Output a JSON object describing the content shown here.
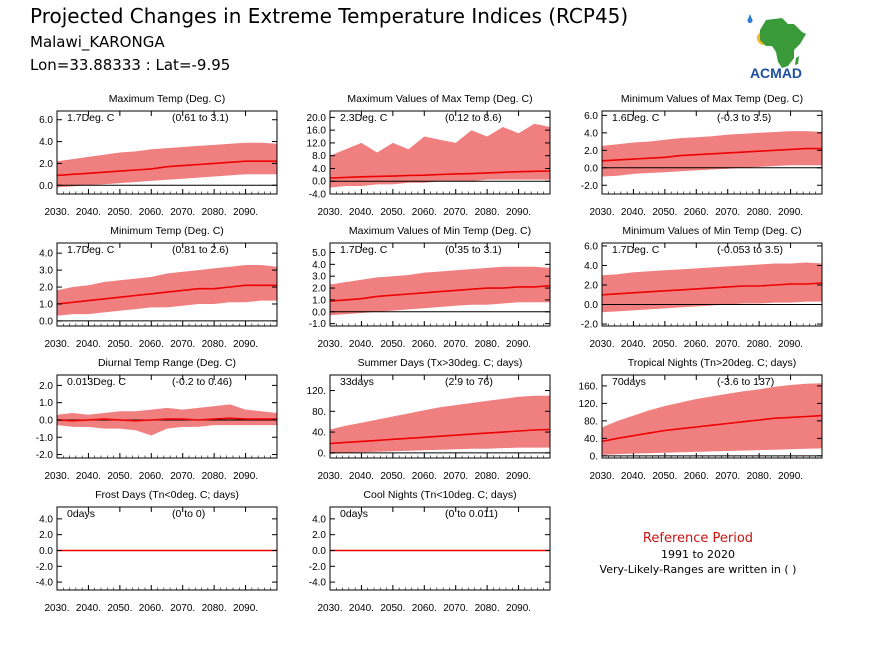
{
  "header": {
    "title": "Projected Changes in Extreme Temperature Indices (RCP45)",
    "location": "Malawi_KARONGA",
    "coords": "Lon=33.88333 : Lat=-9.95"
  },
  "logo": {
    "text": "ACMAD",
    "icon": "africa-continent-logo"
  },
  "reference": {
    "title": "Reference Period",
    "period": "1991 to 2020",
    "note": "Very-Likely-Ranges are written in ( )"
  },
  "colors": {
    "band": "#f08080",
    "line": "#ee0000",
    "zero": "#000000",
    "ref_title": "#cc1111"
  },
  "chart_data": [
    {
      "type": "area",
      "title": "Maximum Temp (Deg. C)",
      "summary": "1.7Deg. C",
      "range": "(0.61 to 3.1)",
      "x": [
        2030,
        2035,
        2040,
        2045,
        2050,
        2055,
        2060,
        2065,
        2070,
        2075,
        2080,
        2085,
        2090,
        2095,
        2100
      ],
      "xticks": [
        "2030.",
        "2040.",
        "2050.",
        "2060.",
        "2070.",
        "2080.",
        "2090."
      ],
      "ylim": [
        -0.8,
        6.8
      ],
      "yticks": [
        "0.0",
        "2.0",
        "4.0",
        "6.0"
      ],
      "ytick_values": [
        0,
        2,
        4,
        6
      ],
      "series": [
        {
          "values": [
            0.9,
            1.0,
            1.1,
            1.2,
            1.3,
            1.4,
            1.5,
            1.7,
            1.8,
            1.9,
            2.0,
            2.1,
            2.2,
            2.2,
            2.2
          ]
        },
        {
          "values": [
            2.2,
            2.4,
            2.6,
            2.8,
            3.0,
            3.1,
            3.3,
            3.4,
            3.5,
            3.6,
            3.7,
            3.8,
            3.9,
            3.9,
            3.8
          ]
        },
        {
          "values": [
            -0.2,
            -0.1,
            0.0,
            0.1,
            0.2,
            0.3,
            0.4,
            0.5,
            0.6,
            0.7,
            0.8,
            0.9,
            1.0,
            1.0,
            1.0
          ]
        }
      ]
    },
    {
      "type": "area",
      "title": "Maximum Values of Max Temp (Deg. C)",
      "summary": "2.3Deg. C",
      "range": "(0.12 to 8.6)",
      "x": [
        2030,
        2035,
        2040,
        2045,
        2050,
        2055,
        2060,
        2065,
        2070,
        2075,
        2080,
        2085,
        2090,
        2095,
        2100
      ],
      "xticks": [
        "2030.",
        "2040.",
        "2050.",
        "2060.",
        "2070.",
        "2080.",
        "2090."
      ],
      "ylim": [
        -4.0,
        22.0
      ],
      "yticks": [
        "-4.0",
        "0.0",
        "4.0",
        "8.0",
        "12.0",
        "16.0",
        "20.0"
      ],
      "ytick_values": [
        -4,
        0,
        4,
        8,
        12,
        16,
        20
      ],
      "series": [
        {
          "values": [
            1.0,
            1.2,
            1.4,
            1.5,
            1.6,
            1.8,
            1.9,
            2.1,
            2.3,
            2.4,
            2.6,
            2.8,
            3.0,
            3.1,
            3.2
          ]
        },
        {
          "values": [
            8.0,
            10.0,
            12.0,
            9.0,
            12.0,
            10.0,
            14.0,
            13.0,
            12.0,
            16.0,
            14.0,
            17.0,
            15.0,
            18.0,
            17.0
          ]
        },
        {
          "values": [
            -2.0,
            -1.5,
            -1.5,
            -1.0,
            -1.0,
            -0.5,
            -0.5,
            0.0,
            0.0,
            0.0,
            0.5,
            0.5,
            0.5,
            0.5,
            0.5
          ]
        }
      ]
    },
    {
      "type": "area",
      "title": "Minimum Values of Max Temp (Deg. C)",
      "summary": "1.6Deg. C",
      "range": "(-0.3 to 3.5)",
      "x": [
        2030,
        2035,
        2040,
        2045,
        2050,
        2055,
        2060,
        2065,
        2070,
        2075,
        2080,
        2085,
        2090,
        2095,
        2100
      ],
      "xticks": [
        "2030.",
        "2040.",
        "2050.",
        "2060.",
        "2070.",
        "2080.",
        "2090."
      ],
      "ylim": [
        -3.0,
        6.5
      ],
      "yticks": [
        "-2.0",
        "0.0",
        "2.0",
        "4.0",
        "6.0"
      ],
      "ytick_values": [
        -2,
        0,
        2,
        4,
        6
      ],
      "series": [
        {
          "values": [
            0.8,
            0.9,
            1.0,
            1.1,
            1.2,
            1.4,
            1.5,
            1.6,
            1.7,
            1.8,
            1.9,
            2.0,
            2.1,
            2.2,
            2.2
          ]
        },
        {
          "values": [
            2.5,
            2.7,
            2.9,
            3.0,
            3.2,
            3.4,
            3.5,
            3.6,
            3.8,
            3.9,
            4.0,
            4.1,
            4.2,
            4.2,
            4.1
          ]
        },
        {
          "values": [
            -1.0,
            -0.9,
            -0.7,
            -0.6,
            -0.5,
            -0.4,
            -0.3,
            -0.2,
            -0.1,
            0.0,
            0.1,
            0.2,
            0.3,
            0.3,
            0.3
          ]
        }
      ]
    },
    {
      "type": "area",
      "title": "Minimum Temp (Deg. C)",
      "summary": "1.7Deg. C",
      "range": "(0.81 to 2.6)",
      "x": [
        2030,
        2035,
        2040,
        2045,
        2050,
        2055,
        2060,
        2065,
        2070,
        2075,
        2080,
        2085,
        2090,
        2095,
        2100
      ],
      "xticks": [
        "2030.",
        "2040.",
        "2050.",
        "2060.",
        "2070.",
        "2080.",
        "2090."
      ],
      "ylim": [
        -0.3,
        4.6
      ],
      "yticks": [
        "0.0",
        "1.0",
        "2.0",
        "3.0",
        "4.0"
      ],
      "ytick_values": [
        0,
        1,
        2,
        3,
        4
      ],
      "series": [
        {
          "values": [
            1.0,
            1.1,
            1.2,
            1.3,
            1.4,
            1.5,
            1.6,
            1.7,
            1.8,
            1.9,
            1.9,
            2.0,
            2.1,
            2.1,
            2.1
          ]
        },
        {
          "values": [
            1.8,
            2.0,
            2.1,
            2.3,
            2.4,
            2.5,
            2.6,
            2.8,
            2.9,
            3.0,
            3.1,
            3.2,
            3.3,
            3.3,
            3.2
          ]
        },
        {
          "values": [
            0.3,
            0.4,
            0.4,
            0.5,
            0.6,
            0.7,
            0.8,
            0.8,
            0.9,
            1.0,
            1.0,
            1.1,
            1.1,
            1.2,
            1.2
          ]
        }
      ]
    },
    {
      "type": "area",
      "title": "Maximum Values of Min Temp (Deg. C)",
      "summary": "1.7Deg. C",
      "range": "(0.35 to 3.1)",
      "x": [
        2030,
        2035,
        2040,
        2045,
        2050,
        2055,
        2060,
        2065,
        2070,
        2075,
        2080,
        2085,
        2090,
        2095,
        2100
      ],
      "xticks": [
        "2030.",
        "2040.",
        "2050.",
        "2060.",
        "2070.",
        "2080.",
        "2090."
      ],
      "ylim": [
        -1.2,
        5.8
      ],
      "yticks": [
        "-1.0",
        "0.0",
        "1.0",
        "2.0",
        "3.0",
        "4.0",
        "5.0"
      ],
      "ytick_values": [
        -1,
        0,
        1,
        2,
        3,
        4,
        5
      ],
      "series": [
        {
          "values": [
            0.9,
            1.0,
            1.1,
            1.3,
            1.4,
            1.5,
            1.6,
            1.7,
            1.8,
            1.9,
            2.0,
            2.0,
            2.1,
            2.1,
            2.2
          ]
        },
        {
          "values": [
            2.3,
            2.5,
            2.7,
            2.9,
            3.0,
            3.1,
            3.3,
            3.4,
            3.5,
            3.6,
            3.7,
            3.8,
            3.8,
            3.8,
            3.7
          ]
        },
        {
          "values": [
            -0.3,
            -0.2,
            -0.1,
            0.0,
            0.1,
            0.2,
            0.3,
            0.4,
            0.5,
            0.6,
            0.6,
            0.7,
            0.8,
            0.8,
            0.8
          ]
        }
      ]
    },
    {
      "type": "area",
      "title": "Minimum Values of Min Temp (Deg. C)",
      "summary": "1.7Deg. C",
      "range": "(-0.053 to 3.5)",
      "x": [
        2030,
        2035,
        2040,
        2045,
        2050,
        2055,
        2060,
        2065,
        2070,
        2075,
        2080,
        2085,
        2090,
        2095,
        2100
      ],
      "xticks": [
        "2030.",
        "2040.",
        "2050.",
        "2060.",
        "2070.",
        "2080.",
        "2090."
      ],
      "ylim": [
        -2.2,
        6.3
      ],
      "yticks": [
        "-2.0",
        "0.0",
        "2.0",
        "4.0",
        "6.0"
      ],
      "ytick_values": [
        -2,
        0,
        2,
        4,
        6
      ],
      "series": [
        {
          "values": [
            1.0,
            1.1,
            1.2,
            1.3,
            1.4,
            1.5,
            1.6,
            1.7,
            1.8,
            1.9,
            1.9,
            2.0,
            2.1,
            2.1,
            2.2
          ]
        },
        {
          "values": [
            3.0,
            3.1,
            3.3,
            3.4,
            3.5,
            3.6,
            3.7,
            3.8,
            3.9,
            4.0,
            4.1,
            4.2,
            4.2,
            4.3,
            4.2
          ]
        },
        {
          "values": [
            -0.8,
            -0.7,
            -0.6,
            -0.5,
            -0.4,
            -0.3,
            -0.2,
            -0.1,
            0.0,
            0.1,
            0.1,
            0.2,
            0.2,
            0.3,
            0.3
          ]
        }
      ]
    },
    {
      "type": "area",
      "title": "Diurnal Temp Range (Deg. C)",
      "summary": "0.013Deg. C",
      "range": "(-0.2 to 0.46)",
      "x": [
        2030,
        2035,
        2040,
        2045,
        2050,
        2055,
        2060,
        2065,
        2070,
        2075,
        2080,
        2085,
        2090,
        2095,
        2100
      ],
      "xticks": [
        "2030.",
        "2040.",
        "2050.",
        "2060.",
        "2070.",
        "2080.",
        "2090."
      ],
      "ylim": [
        -2.2,
        2.6
      ],
      "yticks": [
        "-2.0",
        "-1.0",
        "0.0",
        "1.0",
        "2.0"
      ],
      "ytick_values": [
        -2,
        -1,
        0,
        1,
        2
      ],
      "series": [
        {
          "values": [
            0.0,
            -0.05,
            0.0,
            0.05,
            0.0,
            -0.05,
            0.0,
            0.05,
            0.05,
            0.0,
            0.05,
            0.1,
            0.05,
            0.05,
            0.05
          ]
        },
        {
          "values": [
            0.3,
            0.4,
            0.3,
            0.4,
            0.5,
            0.5,
            0.6,
            0.7,
            0.6,
            0.7,
            0.8,
            0.9,
            0.6,
            0.5,
            0.4
          ]
        },
        {
          "values": [
            -0.3,
            -0.4,
            -0.4,
            -0.5,
            -0.5,
            -0.6,
            -0.9,
            -0.5,
            -0.4,
            -0.4,
            -0.3,
            -0.3,
            -0.3,
            -0.3,
            -0.3
          ]
        }
      ]
    },
    {
      "type": "area",
      "title": "Summer Days (Tx>30deg. C; days)",
      "summary": "33days",
      "range": "(2.9 to 76)",
      "x": [
        2030,
        2035,
        2040,
        2045,
        2050,
        2055,
        2060,
        2065,
        2070,
        2075,
        2080,
        2085,
        2090,
        2095,
        2100
      ],
      "xticks": [
        "2030.",
        "2040.",
        "2050.",
        "2060.",
        "2070.",
        "2080.",
        "2090."
      ],
      "ylim": [
        -10,
        150
      ],
      "yticks": [
        "0.",
        "40.",
        "80.",
        "120."
      ],
      "ytick_values": [
        0,
        40,
        80,
        120
      ],
      "series": [
        {
          "values": [
            18,
            20,
            22,
            24,
            26,
            28,
            30,
            32,
            34,
            36,
            38,
            40,
            42,
            44,
            45
          ]
        },
        {
          "values": [
            45,
            52,
            58,
            64,
            70,
            76,
            82,
            88,
            92,
            96,
            100,
            104,
            108,
            110,
            110
          ]
        },
        {
          "values": [
            -2,
            0,
            1,
            2,
            3,
            4,
            5,
            6,
            7,
            8,
            8,
            9,
            10,
            10,
            10
          ]
        }
      ]
    },
    {
      "type": "area",
      "title": "Tropical Nights (Tn>20deg. C; days)",
      "summary": "70days",
      "range": "(-3.6 to 137)",
      "x": [
        2030,
        2035,
        2040,
        2045,
        2050,
        2055,
        2060,
        2065,
        2070,
        2075,
        2080,
        2085,
        2090,
        2095,
        2100
      ],
      "xticks": [
        "2030.",
        "2040.",
        "2050.",
        "2060.",
        "2070.",
        "2080.",
        "2090."
      ],
      "ylim": [
        -5,
        185
      ],
      "yticks": [
        "0.",
        "40.",
        "80.",
        "120.",
        "160."
      ],
      "ytick_values": [
        0,
        40,
        80,
        120,
        160
      ],
      "series": [
        {
          "values": [
            33,
            40,
            46,
            52,
            58,
            62,
            66,
            70,
            74,
            78,
            82,
            86,
            88,
            90,
            92
          ]
        },
        {
          "values": [
            65,
            80,
            92,
            104,
            114,
            122,
            130,
            136,
            142,
            148,
            152,
            158,
            162,
            165,
            166
          ]
        },
        {
          "values": [
            2,
            4,
            5,
            6,
            7,
            8,
            9,
            10,
            11,
            12,
            13,
            14,
            15,
            16,
            17
          ]
        }
      ]
    },
    {
      "type": "area",
      "title": "Frost Days (Tn<0deg. C; days)",
      "summary": "0days",
      "range": "(0 to 0)",
      "x": [
        2030,
        2035,
        2040,
        2045,
        2050,
        2055,
        2060,
        2065,
        2070,
        2075,
        2080,
        2085,
        2090,
        2095,
        2100
      ],
      "xticks": [
        "2030.",
        "2040.",
        "2050.",
        "2060.",
        "2070.",
        "2080.",
        "2090."
      ],
      "ylim": [
        -5.0,
        5.5
      ],
      "yticks": [
        "-4.0",
        "-2.0",
        "0.0",
        "2.0",
        "4.0"
      ],
      "ytick_values": [
        -4,
        -2,
        0,
        2,
        4
      ],
      "series": [
        {
          "values": [
            0,
            0,
            0,
            0,
            0,
            0,
            0,
            0,
            0,
            0,
            0,
            0,
            0,
            0,
            0
          ]
        },
        {
          "values": [
            0,
            0,
            0,
            0,
            0,
            0,
            0,
            0,
            0,
            0,
            0,
            0,
            0,
            0,
            0
          ]
        },
        {
          "values": [
            0,
            0,
            0,
            0,
            0,
            0,
            0,
            0,
            0,
            0,
            0,
            0,
            0,
            0,
            0
          ]
        }
      ]
    },
    {
      "type": "area",
      "title": "Cool Nights (Tn<10deg. C; days)",
      "summary": "0days",
      "range": "(0 to 0.011)",
      "x": [
        2030,
        2035,
        2040,
        2045,
        2050,
        2055,
        2060,
        2065,
        2070,
        2075,
        2080,
        2085,
        2090,
        2095,
        2100
      ],
      "xticks": [
        "2030.",
        "2040.",
        "2050.",
        "2060.",
        "2070.",
        "2080.",
        "2090."
      ],
      "ylim": [
        -5.0,
        5.5
      ],
      "yticks": [
        "-4.0",
        "-2.0",
        "0.0",
        "2.0",
        "4.0"
      ],
      "ytick_values": [
        -4,
        -2,
        0,
        2,
        4
      ],
      "series": [
        {
          "values": [
            0,
            0,
            0,
            0,
            0,
            0,
            0,
            0,
            0,
            0,
            0,
            0,
            0,
            0,
            0
          ]
        },
        {
          "values": [
            0,
            0,
            0,
            0,
            0,
            0,
            0,
            0,
            0,
            0,
            0,
            0.01,
            0,
            0,
            0
          ]
        },
        {
          "values": [
            0,
            0,
            0,
            0,
            0,
            0,
            0,
            0,
            0,
            0,
            0,
            0,
            0,
            0,
            0
          ]
        }
      ]
    }
  ]
}
